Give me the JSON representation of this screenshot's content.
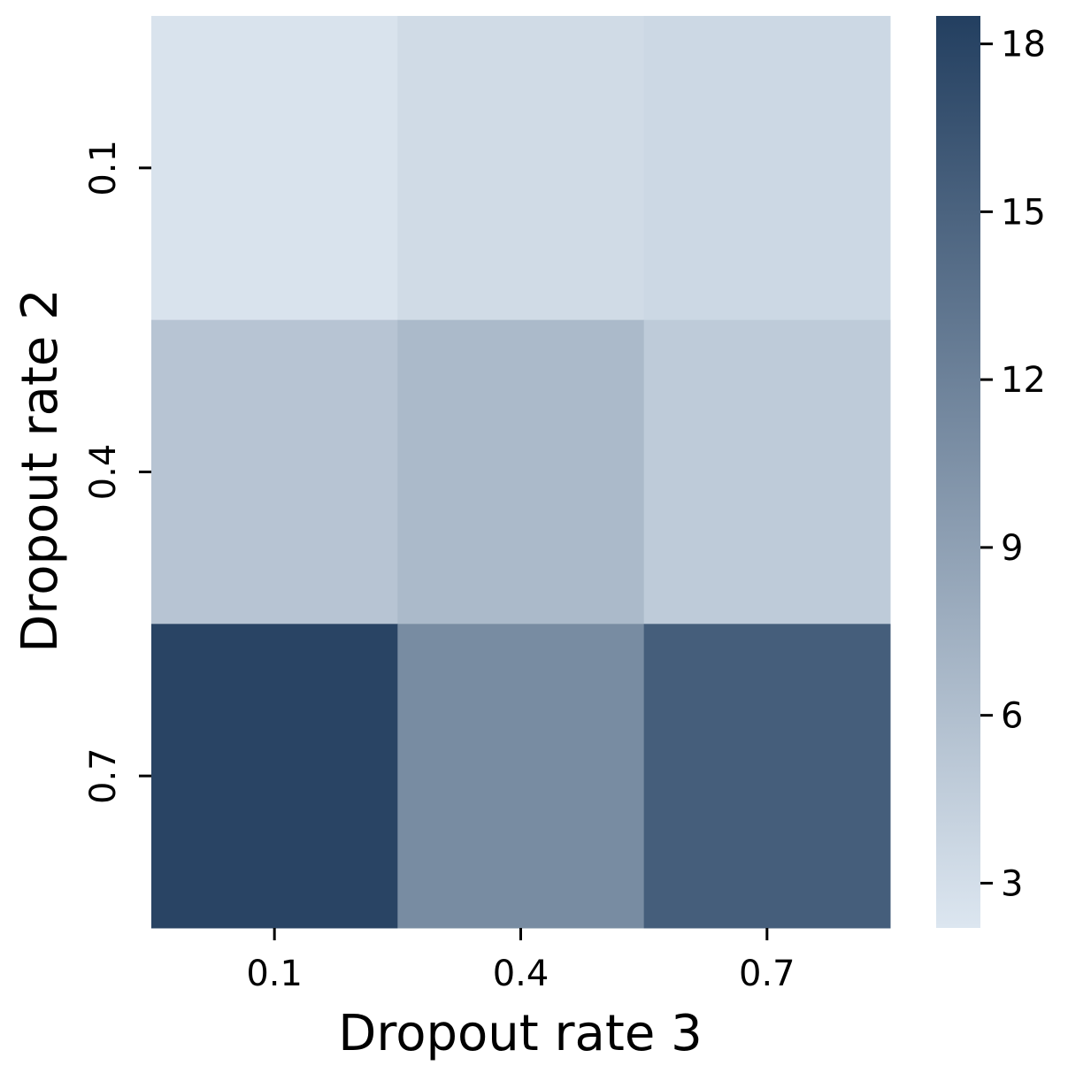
{
  "chart_data": {
    "type": "heatmap",
    "title": "",
    "xlabel": "Dropout rate 3",
    "ylabel": "Dropout rate 2",
    "x_categories": [
      "0.1",
      "0.4",
      "0.7"
    ],
    "y_categories": [
      "0.1",
      "0.4",
      "0.7"
    ],
    "values": [
      [
        2.5,
        3.3,
        3.6
      ],
      [
        5.5,
        6.5,
        4.8
      ],
      [
        18.0,
        11.0,
        15.5
      ]
    ],
    "colorbar": {
      "range": [
        2.2,
        18.5
      ],
      "ticks": [
        3,
        6,
        9,
        12,
        15,
        18
      ],
      "low_color": "#dce6f0",
      "high_color": "#233f60"
    },
    "grid": false,
    "legend": "colorbar-right"
  }
}
